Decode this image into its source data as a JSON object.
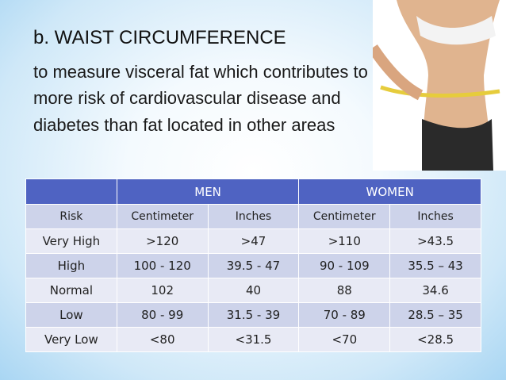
{
  "header": {
    "title": "b. WAIST CIRCUMFERENCE",
    "lines": [
      "to measure visceral fat which contributes to",
      "more risk of cardiovascular disease and",
      "diabetes than fat located in other areas"
    ]
  },
  "table": {
    "groups": [
      "MEN",
      "WOMEN"
    ],
    "columns": [
      "Risk",
      "Centimeter",
      "Inches",
      "Centimeter",
      "Inches"
    ],
    "rows": [
      [
        "Very High",
        ">120",
        ">47",
        ">110",
        ">43.5"
      ],
      [
        "High",
        "100 - 120",
        "39.5 - 47",
        "90 - 109",
        "35.5 – 43"
      ],
      [
        "Normal",
        "102",
        "40",
        "88",
        "34.6"
      ],
      [
        "Low",
        "80 - 99",
        "31.5 - 39",
        "70 - 89",
        "28.5 – 35"
      ],
      [
        "Very Low",
        "<80",
        "<31.5",
        "<70",
        "<28.5"
      ]
    ]
  }
}
